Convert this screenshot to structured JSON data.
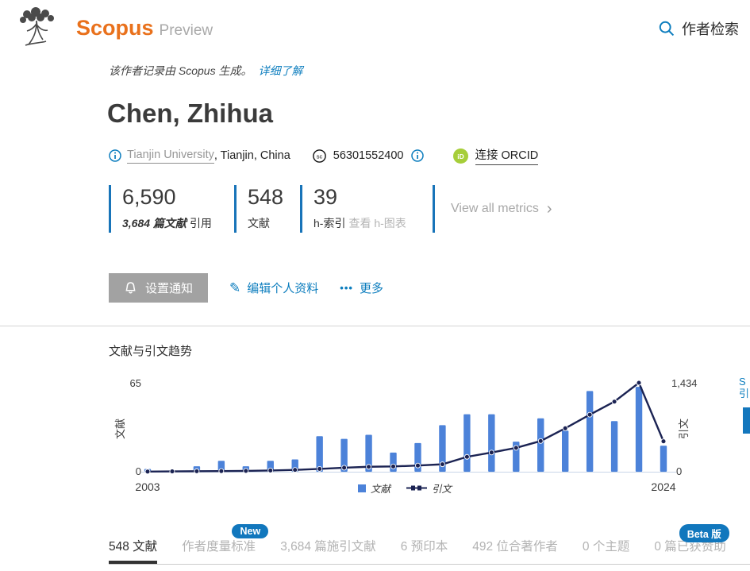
{
  "header": {
    "brand": "Scopus",
    "brand_suffix": "Preview",
    "search_label": "作者检索"
  },
  "notice": {
    "text": "该作者记录由 Scopus 生成。",
    "link": "详细了解"
  },
  "author": {
    "name": "Chen, Zhihua",
    "affiliation": "Tianjin University",
    "affiliation_suffix": ", Tianjin, China",
    "scopus_id": "56301552400",
    "scopus_id_icon": "sc",
    "orcid_icon": "iD",
    "orcid_link": "连接 ORCID"
  },
  "metrics": {
    "items": [
      {
        "id": "citations",
        "value": "6,590",
        "sub": [
          {
            "text": "3,684 篇文献",
            "style": "strong-italic"
          },
          {
            "text": "引用",
            "style": "plain"
          }
        ]
      },
      {
        "id": "documents",
        "value": "548",
        "sub": [
          {
            "text": "文献",
            "style": "plain"
          }
        ]
      },
      {
        "id": "h-index",
        "value": "39",
        "sub": [
          {
            "text": "h-索引",
            "style": "plain"
          },
          {
            "text": "查看 h-图表",
            "style": "muted"
          }
        ]
      }
    ],
    "view_all": "View all metrics",
    "chevron": "›"
  },
  "actions": {
    "alert": "设置通知",
    "edit": "编辑个人资料",
    "more": "更多",
    "more_icon": "•••"
  },
  "chart_section": {
    "title": "文献与引文趋势"
  },
  "chart_data": {
    "type": "bar+line",
    "title": "文献与引文趋势",
    "x": [
      2003,
      2004,
      2005,
      2006,
      2007,
      2008,
      2009,
      2010,
      2011,
      2012,
      2013,
      2014,
      2015,
      2016,
      2017,
      2018,
      2019,
      2020,
      2021,
      2022,
      2023,
      2024
    ],
    "series": [
      {
        "name": "文献",
        "type": "bar",
        "axis": "left",
        "values": [
          2,
          1,
          4,
          8,
          4,
          8,
          9,
          26,
          24,
          27,
          14,
          21,
          34,
          42,
          42,
          22,
          39,
          30,
          59,
          37,
          62,
          19
        ]
      },
      {
        "name": "引文",
        "type": "line",
        "axis": "right",
        "values": [
          2,
          5,
          8,
          10,
          14,
          20,
          30,
          45,
          65,
          80,
          85,
          100,
          120,
          240,
          310,
          385,
          495,
          700,
          920,
          1130,
          1434,
          490
        ]
      }
    ],
    "left_axis": {
      "label": "文献",
      "min": 0,
      "max": 65,
      "ticks": [
        "0",
        "65"
      ]
    },
    "right_axis": {
      "label": "引文",
      "min": 0,
      "max": 1434,
      "ticks": [
        "0",
        "1,434"
      ]
    },
    "x_ticks_shown": [
      "2003",
      "2024"
    ],
    "legend": [
      "文献",
      "引文"
    ],
    "legend_position": "bottom-center",
    "grid": false,
    "colors": {
      "bar": "#4c82d9",
      "line": "#1b2353",
      "axis_line": "#c9d6e8",
      "text": "#3c3c3c"
    }
  },
  "tabs": [
    {
      "label": "548 文献",
      "active": true
    },
    {
      "label": "作者度量标准",
      "badge": "New"
    },
    {
      "label": "3,684 篇施引文献"
    },
    {
      "label": "6 预印本"
    },
    {
      "label": "492 位合著作者"
    },
    {
      "label": "0 个主题"
    },
    {
      "label": "0 篇已获赞助",
      "badge": "Beta 版"
    }
  ],
  "edge_fragment": {
    "text_lines": [
      "S",
      "引"
    ],
    "tab_color": "#1377bd"
  },
  "colors": {
    "brand_orange": "#e9711c",
    "link_blue": "#0c7dbe",
    "badge_blue": "#1177bd",
    "metric_bar_blue": "#1874b9",
    "orcid_green": "#a6ce39",
    "button_gray": "#a2a2a2"
  }
}
